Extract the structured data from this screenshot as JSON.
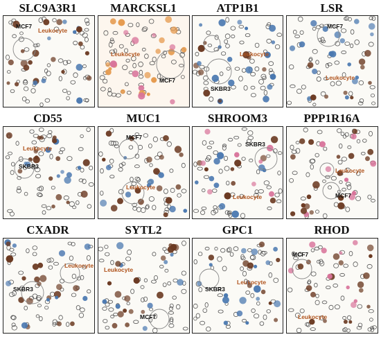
{
  "panels": [
    {
      "gene": "SLC9A3R1",
      "labels": [
        "MCF7",
        "Leukocyte"
      ]
    },
    {
      "gene": "MARCKSL1",
      "labels": [
        "Leukocyte",
        "MCF7"
      ]
    },
    {
      "gene": "ATP1B1",
      "labels": [
        "Leukocyte",
        "SKBR3"
      ]
    },
    {
      "gene": "LSR",
      "labels": [
        "MCF7",
        "Leukocyte"
      ]
    },
    {
      "gene": "CD55",
      "labels": [
        "Leukocyte",
        "SKBR3"
      ]
    },
    {
      "gene": "MUC1",
      "labels": [
        "MCF7",
        "Leukocyte"
      ]
    },
    {
      "gene": "SHROOM3",
      "labels": [
        "SKBR3",
        "Leukocyte"
      ]
    },
    {
      "gene": "PPP1R16A",
      "labels": [
        "Leukocyte",
        "MCF7"
      ]
    },
    {
      "gene": "CXADR",
      "labels": [
        "Leukocyte",
        "SKBR3"
      ]
    },
    {
      "gene": "SYTL2",
      "labels": [
        "Leukocyte",
        "MCF7"
      ]
    },
    {
      "gene": "GPC1",
      "labels": [
        "SKBR3",
        "Leukocyte"
      ]
    },
    {
      "gene": "RHOD",
      "labels": [
        "MCF7",
        "Leukocyte"
      ]
    }
  ],
  "colors": {
    "brown_stain": "#6b3a22",
    "blue_stain": "#4a78b0",
    "pink_stain": "#d8739a",
    "orange_stain": "#e59a4e",
    "leukocyte_label": "#b0531c"
  }
}
